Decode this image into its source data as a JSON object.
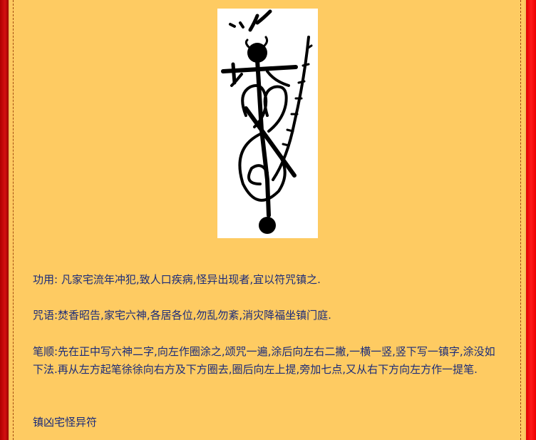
{
  "colors": {
    "panel_background": "#fecb62",
    "border": "#ff0000",
    "text": "#1a2b7a"
  },
  "image": {
    "icon": "talisman-drawing-icon"
  },
  "content": {
    "function_text": "功用: 凡家宅流年冲犯,致人口疾病,怪异出现者,宜以符咒镇之.",
    "incantation_text": "咒语:焚香昭告,家宅六神,各居各位,勿乱勿紊,消灾降福坐镇门庭.",
    "stroke_order_text": "笔顺:先在正中写六神二字,向左作圈涂之,颂咒一遍,涂后向左右二撇,一横一竖,竖下写一镇字,涂没如下法.再从左方起笔徐徐向右方及下方圈去,圈后向左上提,旁加七点,又从右下方向左方作一提笔.",
    "talisman_name": "镇凶宅怪异符"
  }
}
